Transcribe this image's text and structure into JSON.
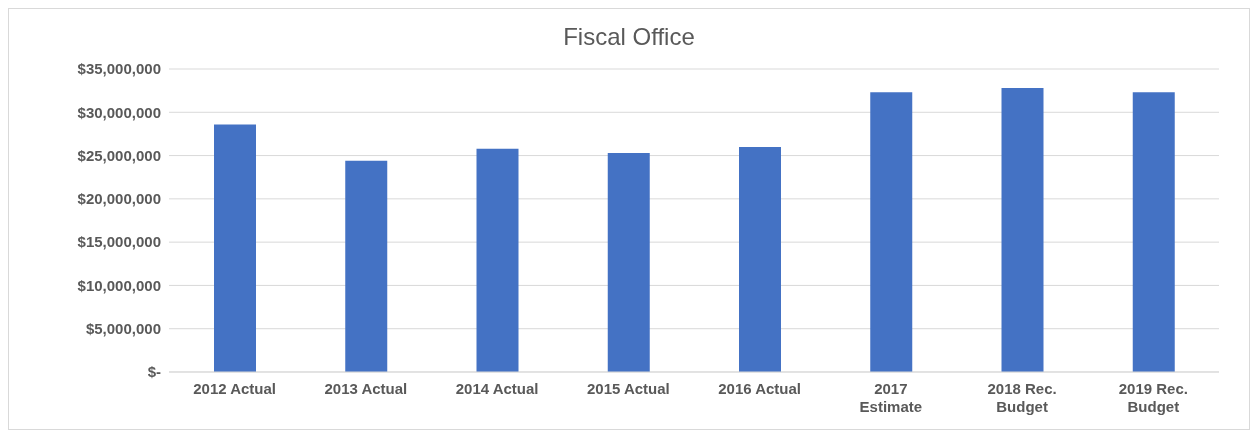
{
  "chart_data": {
    "type": "bar",
    "title": "Fiscal Office",
    "categories": [
      "2012 Actual",
      "2013 Actual",
      "2014 Actual",
      "2015 Actual",
      "2016 Actual",
      "2017 Estimate",
      "2018 Rec. Budget",
      "2019 Rec. Budget"
    ],
    "values": [
      28600000,
      24400000,
      25800000,
      25300000,
      26000000,
      32300000,
      32800000,
      32300000
    ],
    "color": "#4472c4",
    "ylim": [
      0,
      35000000
    ],
    "yticks": [
      {
        "value": 0,
        "label": "$-"
      },
      {
        "value": 5000000,
        "label": "$5,000,000"
      },
      {
        "value": 10000000,
        "label": "$10,000,000"
      },
      {
        "value": 15000000,
        "label": "$15,000,000"
      },
      {
        "value": 20000000,
        "label": "$20,000,000"
      },
      {
        "value": 25000000,
        "label": "$25,000,000"
      },
      {
        "value": 30000000,
        "label": "$30,000,000"
      },
      {
        "value": 35000000,
        "label": "$35,000,000"
      }
    ],
    "grid": "y"
  }
}
